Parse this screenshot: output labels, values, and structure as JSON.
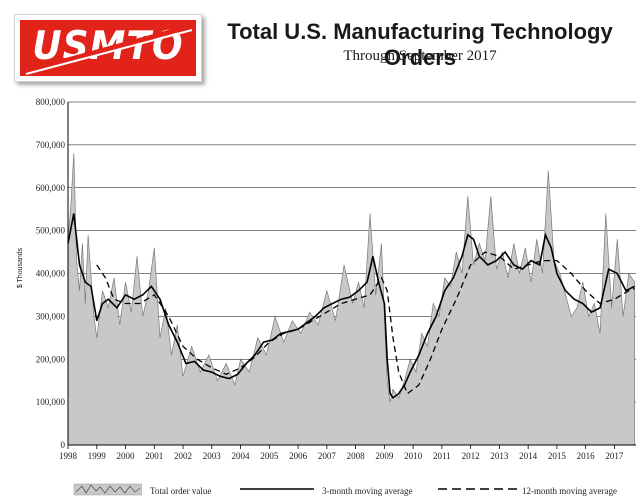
{
  "header": {
    "logo_text": "USMTO",
    "title": "Total U.S. Manufacturing Technology Orders",
    "subtitle": "Through September  2017"
  },
  "colors": {
    "logo_red": "#e2231a",
    "area_fill": "#c8c8c8",
    "line": "#000000",
    "grid": "#000000"
  },
  "chart_data": {
    "type": "line",
    "title": "Total U.S. Manufacturing Technology Orders",
    "subtitle": "Through September  2017",
    "ylabel": "$ Thousands",
    "xlabel": "",
    "ylim": [
      0,
      800000
    ],
    "xlim": [
      1998.0,
      2017.75
    ],
    "grid": "horizontal",
    "legend_position": "bottom",
    "y_ticks": [
      0,
      100000,
      200000,
      300000,
      400000,
      500000,
      600000,
      700000,
      800000
    ],
    "y_tick_labels": [
      "0",
      "100,000",
      "200,000",
      "300,000",
      "400,000",
      "500,000",
      "600,000",
      "700,000",
      "800,000"
    ],
    "x_tick_labels": [
      "1998",
      "1999",
      "2000",
      "2001",
      "2002",
      "2003",
      "2004",
      "2005",
      "2006",
      "2007",
      "2008",
      "2009",
      "2010",
      "2011",
      "2012",
      "2013",
      "2014",
      "2015",
      "2016",
      "2017"
    ],
    "series": [
      {
        "name": "Total order value",
        "style": "area",
        "x": [
          1998.0,
          1998.1,
          1998.2,
          1998.3,
          1998.4,
          1998.5,
          1998.6,
          1998.7,
          1998.9,
          1999.0,
          1999.2,
          1999.4,
          1999.6,
          1999.8,
          2000.0,
          2000.2,
          2000.4,
          2000.6,
          2000.8,
          2001.0,
          2001.2,
          2001.4,
          2001.6,
          2001.8,
          2002.0,
          2002.3,
          2002.6,
          2002.9,
          2003.2,
          2003.5,
          2003.8,
          2004.0,
          2004.3,
          2004.6,
          2004.9,
          2005.2,
          2005.5,
          2005.8,
          2006.1,
          2006.4,
          2006.7,
          2007.0,
          2007.3,
          2007.6,
          2007.9,
          2008.1,
          2008.3,
          2008.5,
          2008.7,
          2008.9,
          2009.0,
          2009.1,
          2009.2,
          2009.3,
          2009.5,
          2009.7,
          2009.9,
          2010.1,
          2010.3,
          2010.5,
          2010.7,
          2010.9,
          2011.1,
          2011.3,
          2011.5,
          2011.7,
          2011.9,
          2012.1,
          2012.3,
          2012.5,
          2012.7,
          2012.9,
          2013.1,
          2013.3,
          2013.5,
          2013.7,
          2013.9,
          2014.1,
          2014.3,
          2014.5,
          2014.7,
          2014.9,
          2015.1,
          2015.3,
          2015.5,
          2015.7,
          2015.9,
          2016.1,
          2016.3,
          2016.5,
          2016.7,
          2016.9,
          2017.1,
          2017.3,
          2017.5,
          2017.7
        ],
        "values": [
          480000,
          560000,
          680000,
          430000,
          360000,
          470000,
          330000,
          490000,
          300000,
          250000,
          360000,
          320000,
          390000,
          280000,
          380000,
          310000,
          440000,
          300000,
          360000,
          460000,
          250000,
          320000,
          210000,
          280000,
          160000,
          230000,
          170000,
          210000,
          150000,
          190000,
          140000,
          200000,
          170000,
          250000,
          210000,
          300000,
          240000,
          290000,
          260000,
          310000,
          280000,
          360000,
          290000,
          420000,
          330000,
          380000,
          320000,
          540000,
          350000,
          470000,
          300000,
          150000,
          100000,
          130000,
          110000,
          150000,
          200000,
          170000,
          260000,
          230000,
          330000,
          300000,
          390000,
          370000,
          450000,
          400000,
          580000,
          420000,
          470000,
          430000,
          580000,
          410000,
          450000,
          390000,
          470000,
          400000,
          460000,
          380000,
          480000,
          400000,
          640000,
          430000,
          400000,
          350000,
          300000,
          320000,
          380000,
          300000,
          330000,
          260000,
          540000,
          320000,
          480000,
          300000,
          400000,
          380000
        ]
      },
      {
        "name": "3-month moving average",
        "style": "solid",
        "x": [
          1998.0,
          1998.2,
          1998.4,
          1998.6,
          1998.8,
          1999.0,
          1999.2,
          1999.4,
          1999.7,
          2000.0,
          2000.3,
          2000.6,
          2000.9,
          2001.2,
          2001.5,
          2001.8,
          2002.1,
          2002.4,
          2002.7,
          2003.0,
          2003.3,
          2003.6,
          2003.9,
          2004.2,
          2004.5,
          2004.8,
          2005.1,
          2005.4,
          2005.7,
          2006.0,
          2006.3,
          2006.6,
          2006.9,
          2007.2,
          2007.5,
          2007.8,
          2008.1,
          2008.4,
          2008.6,
          2008.8,
          2009.0,
          2009.1,
          2009.2,
          2009.3,
          2009.5,
          2009.7,
          2009.9,
          2010.2,
          2010.5,
          2010.8,
          2011.1,
          2011.4,
          2011.7,
          2011.9,
          2012.1,
          2012.3,
          2012.6,
          2012.9,
          2013.2,
          2013.5,
          2013.8,
          2014.1,
          2014.4,
          2014.6,
          2014.8,
          2015.0,
          2015.3,
          2015.6,
          2015.9,
          2016.2,
          2016.5,
          2016.8,
          2017.1,
          2017.4,
          2017.7
        ],
        "values": [
          470000,
          540000,
          420000,
          380000,
          370000,
          290000,
          330000,
          340000,
          320000,
          350000,
          340000,
          350000,
          370000,
          340000,
          280000,
          240000,
          190000,
          195000,
          175000,
          170000,
          160000,
          155000,
          165000,
          190000,
          210000,
          240000,
          245000,
          260000,
          265000,
          270000,
          285000,
          300000,
          320000,
          330000,
          340000,
          345000,
          360000,
          380000,
          440000,
          380000,
          330000,
          200000,
          120000,
          110000,
          120000,
          140000,
          170000,
          210000,
          260000,
          300000,
          360000,
          390000,
          440000,
          490000,
          480000,
          440000,
          420000,
          430000,
          450000,
          420000,
          410000,
          430000,
          420000,
          490000,
          460000,
          400000,
          360000,
          340000,
          330000,
          310000,
          320000,
          410000,
          400000,
          360000,
          370000
        ]
      },
      {
        "name": "12-month moving average",
        "style": "dashed",
        "x": [
          1999.0,
          1999.3,
          1999.6,
          2000.0,
          2000.5,
          2001.0,
          2001.5,
          2002.0,
          2002.5,
          2003.0,
          2003.5,
          2004.0,
          2004.5,
          2005.0,
          2005.5,
          2006.0,
          2006.5,
          2007.0,
          2007.5,
          2008.0,
          2008.5,
          2008.9,
          2009.1,
          2009.3,
          2009.5,
          2009.8,
          2010.2,
          2010.6,
          2011.0,
          2011.5,
          2012.0,
          2012.5,
          2013.0,
          2013.5,
          2014.0,
          2014.5,
          2015.0,
          2015.5,
          2016.0,
          2016.5,
          2017.0,
          2017.5,
          2017.7
        ],
        "values": [
          420000,
          390000,
          340000,
          330000,
          330000,
          350000,
          300000,
          230000,
          200000,
          180000,
          165000,
          180000,
          205000,
          240000,
          260000,
          270000,
          290000,
          310000,
          330000,
          340000,
          350000,
          390000,
          360000,
          250000,
          170000,
          120000,
          140000,
          200000,
          270000,
          340000,
          420000,
          450000,
          440000,
          410000,
          420000,
          430000,
          430000,
          400000,
          360000,
          330000,
          340000,
          360000,
          365000
        ]
      }
    ]
  }
}
